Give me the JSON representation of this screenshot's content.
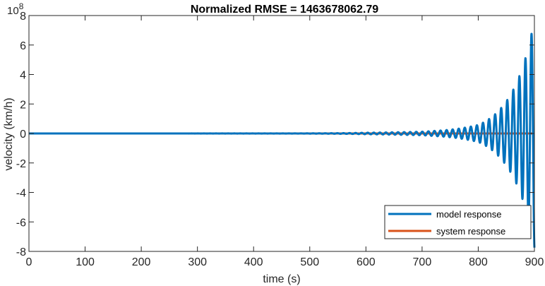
{
  "chart_data": {
    "type": "line",
    "title": "Normalized RMSE = 1463678062.79",
    "xlabel": "time (s)",
    "ylabel": "velocity (km/h)",
    "xlim": [
      0,
      900
    ],
    "ylim": [
      -8,
      8
    ],
    "y_exponent_base": "10",
    "y_exponent_power": "8",
    "x_ticks": [
      0,
      100,
      200,
      300,
      400,
      500,
      600,
      700,
      800,
      900
    ],
    "y_ticks": [
      -8,
      -6,
      -4,
      -2,
      0,
      2,
      4,
      6,
      8
    ],
    "grid": false,
    "legend_position": "bottom-right",
    "series": [
      {
        "name": "model response",
        "color": "#0072BD",
        "envelope": {
          "x": [
            450,
            550,
            600,
            650,
            700,
            720,
            740,
            760,
            780,
            800,
            820,
            840,
            860,
            880,
            895,
            900
          ],
          "amplitude": [
            0.005,
            0.02,
            0.05,
            0.08,
            0.12,
            0.17,
            0.22,
            0.3,
            0.42,
            0.58,
            1.0,
            1.7,
            2.8,
            4.6,
            6.8,
            7.8
          ]
        },
        "period": 10.8,
        "peaks": [
          {
            "x": 811.5,
            "y": 0.65
          },
          {
            "x": 817,
            "y": -0.9
          },
          {
            "x": 828,
            "y": 1.3
          },
          {
            "x": 833,
            "y": -1.6
          },
          {
            "x": 845,
            "y": 2.1
          },
          {
            "x": 850,
            "y": -2.6
          },
          {
            "x": 861,
            "y": 3.3
          },
          {
            "x": 867,
            "y": -4.1
          },
          {
            "x": 878,
            "y": 5.1
          },
          {
            "x": 884,
            "y": -6.2
          },
          {
            "x": 894,
            "y": 7.7
          },
          {
            "x": 896,
            "y": 7.8
          },
          {
            "x": 900,
            "y": 6.6
          }
        ]
      },
      {
        "name": "system response",
        "color": "#D95319",
        "x": [
          0,
          900
        ],
        "values": [
          0,
          0
        ]
      }
    ]
  }
}
